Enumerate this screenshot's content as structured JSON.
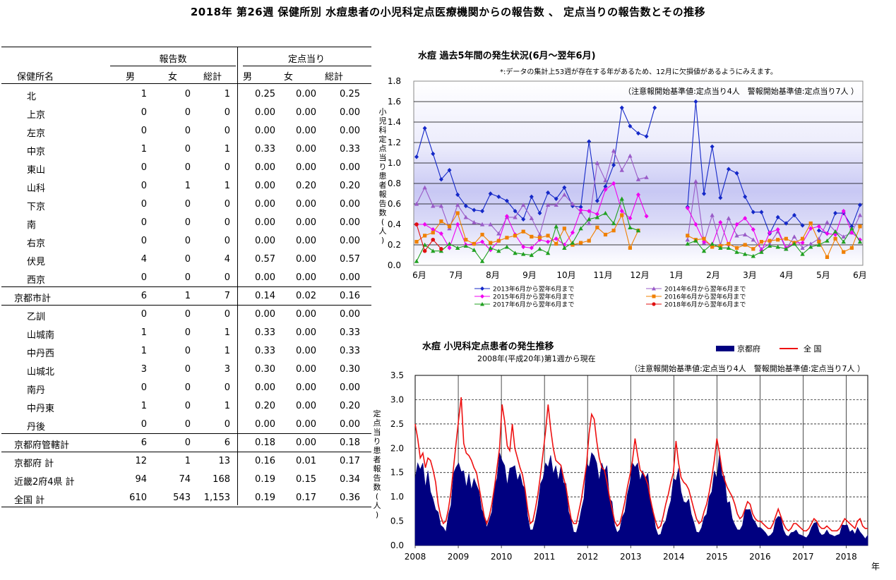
{
  "page_title": "2018年 第26週 保健所別 水痘患者の小児科定点医療機関からの報告数 、 定点当りの報告数とその推移",
  "table": {
    "group_reports": "報告数",
    "group_per_site": "定点当り",
    "col_name": "保健所名",
    "col_male": "男",
    "col_female": "女",
    "col_total": "総計",
    "col_male2": "男",
    "col_female2": "女",
    "col_total2": "総計",
    "rows": [
      {
        "name": "北",
        "m": "1",
        "f": "0",
        "t": "1",
        "pm": "0.25",
        "pf": "0.00",
        "pt": "0.25",
        "sub": true
      },
      {
        "name": "上京",
        "m": "0",
        "f": "0",
        "t": "0",
        "pm": "0.00",
        "pf": "0.00",
        "pt": "0.00",
        "sub": true
      },
      {
        "name": "左京",
        "m": "0",
        "f": "0",
        "t": "0",
        "pm": "0.00",
        "pf": "0.00",
        "pt": "0.00",
        "sub": true
      },
      {
        "name": "中京",
        "m": "1",
        "f": "0",
        "t": "1",
        "pm": "0.33",
        "pf": "0.00",
        "pt": "0.33",
        "sub": true
      },
      {
        "name": "東山",
        "m": "0",
        "f": "0",
        "t": "0",
        "pm": "0.00",
        "pf": "0.00",
        "pt": "0.00",
        "sub": true
      },
      {
        "name": "山科",
        "m": "0",
        "f": "1",
        "t": "1",
        "pm": "0.00",
        "pf": "0.20",
        "pt": "0.20",
        "sub": true
      },
      {
        "name": "下京",
        "m": "0",
        "f": "0",
        "t": "0",
        "pm": "0.00",
        "pf": "0.00",
        "pt": "0.00",
        "sub": true
      },
      {
        "name": "南",
        "m": "0",
        "f": "0",
        "t": "0",
        "pm": "0.00",
        "pf": "0.00",
        "pt": "0.00",
        "sub": true
      },
      {
        "name": "右京",
        "m": "0",
        "f": "0",
        "t": "0",
        "pm": "0.00",
        "pf": "0.00",
        "pt": "0.00",
        "sub": true
      },
      {
        "name": "伏見",
        "m": "4",
        "f": "0",
        "t": "4",
        "pm": "0.57",
        "pf": "0.00",
        "pt": "0.57",
        "sub": true
      },
      {
        "name": "西京",
        "m": "0",
        "f": "0",
        "t": "0",
        "pm": "0.00",
        "pf": "0.00",
        "pt": "0.00",
        "sub": true
      },
      {
        "name": "京都市計",
        "m": "6",
        "f": "1",
        "t": "7",
        "pm": "0.14",
        "pf": "0.02",
        "pt": "0.16",
        "sub": false
      },
      {
        "name": "乙訓",
        "m": "0",
        "f": "0",
        "t": "0",
        "pm": "0.00",
        "pf": "0.00",
        "pt": "0.00",
        "sub": true
      },
      {
        "name": "山城南",
        "m": "1",
        "f": "0",
        "t": "1",
        "pm": "0.33",
        "pf": "0.00",
        "pt": "0.33",
        "sub": true
      },
      {
        "name": "中丹西",
        "m": "1",
        "f": "0",
        "t": "1",
        "pm": "0.33",
        "pf": "0.00",
        "pt": "0.33",
        "sub": true
      },
      {
        "name": "山城北",
        "m": "3",
        "f": "0",
        "t": "3",
        "pm": "0.30",
        "pf": "0.00",
        "pt": "0.30",
        "sub": true
      },
      {
        "name": "南丹",
        "m": "0",
        "f": "0",
        "t": "0",
        "pm": "0.00",
        "pf": "0.00",
        "pt": "0.00",
        "sub": true
      },
      {
        "name": "中丹東",
        "m": "1",
        "f": "0",
        "t": "1",
        "pm": "0.20",
        "pf": "0.00",
        "pt": "0.20",
        "sub": true
      },
      {
        "name": "丹後",
        "m": "0",
        "f": "0",
        "t": "0",
        "pm": "0.00",
        "pf": "0.00",
        "pt": "0.00",
        "sub": true
      },
      {
        "name": "京都府管轄計",
        "m": "6",
        "f": "0",
        "t": "6",
        "pm": "0.18",
        "pf": "0.00",
        "pt": "0.18",
        "sub": false
      },
      {
        "name": "京都府 計",
        "m": "12",
        "f": "1",
        "t": "13",
        "pm": "0.16",
        "pf": "0.01",
        "pt": "0.17",
        "sub": false
      },
      {
        "name": "近畿2府4県 計",
        "m": "94",
        "f": "74",
        "t": "168",
        "pm": "0.19",
        "pf": "0.15",
        "pt": "0.34",
        "sub": false
      },
      {
        "name": "全国 計",
        "m": "610",
        "f": "543",
        "t": "1,153",
        "pm": "0.19",
        "pf": "0.17",
        "pt": "0.36",
        "sub": false
      }
    ]
  },
  "chart_data": [
    {
      "type": "line",
      "title": "水痘 過去5年間の発生状況(6月～翌年6月)",
      "note": "*:データの集計上53週が存在する年があるため、12月に欠損値があるようにみえます。",
      "threshold_note": "（注意報開始基準値:定点当り4人　警報開始基準値:定点当り7人 ）",
      "ylabel": "小児科定点当り患者報告数(人)",
      "ylim": [
        0,
        1.8
      ],
      "yticks": [
        "0.0",
        "0.2",
        "0.4",
        "0.6",
        "0.8",
        "1.0",
        "1.2",
        "1.4",
        "1.6",
        "1.8"
      ],
      "xticks": [
        "6月",
        "7月",
        "8月",
        "9月",
        "10月",
        "11月",
        "12月",
        "1月",
        "2月",
        "3月",
        "4月",
        "5月",
        "6月"
      ],
      "series": [
        {
          "name": "2013年6月から翌年6月まで",
          "color": "#1428c8",
          "marker": "diamond",
          "values": [
            1.06,
            1.34,
            1.09,
            0.84,
            0.93,
            0.69,
            0.58,
            0.54,
            0.53,
            0.7,
            0.67,
            0.63,
            0.53,
            0.45,
            0.67,
            0.51,
            0.71,
            0.65,
            0.76,
            0.58,
            0.57,
            1.21,
            0.63,
            0.77,
            0.98,
            1.54,
            1.36,
            1.29,
            1.26,
            1.54,
            null,
            null,
            null,
            0.57,
            1.6,
            0.7,
            1.16,
            0.66,
            0.94,
            0.9,
            0.67,
            0.52,
            0.52,
            0.31,
            0.47,
            0.41,
            0.49,
            0.39,
            null,
            0.34,
            0.31,
            0.51,
            0.51,
            0.38,
            0.59
          ]
        },
        {
          "name": "2014年6月から翌年6月まで",
          "color": "#9a5cc8",
          "marker": "triangle",
          "values": [
            0.6,
            0.76,
            0.58,
            0.58,
            0.36,
            0.59,
            0.47,
            0.42,
            0.4,
            0.4,
            0.31,
            0.47,
            0.47,
            0.59,
            0.46,
            0.3,
            0.59,
            0.59,
            0.69,
            0.6,
            0.52,
            0.41,
            1.0,
            0.83,
            1.12,
            0.93,
            1.07,
            0.84,
            0.86,
            null,
            null,
            null,
            null,
            0.25,
            0.82,
            0.22,
            0.49,
            0.2,
            0.46,
            0.29,
            0.3,
            0.25,
            0.16,
            0.21,
            0.33,
            0.16,
            0.28,
            0.17,
            0.21,
            0.26,
            0.42,
            0.33,
            0.28,
            0.32,
            0.49
          ]
        },
        {
          "name": "2015年6月から翌年6月まで",
          "color": "#f000f0",
          "marker": "diamond",
          "values": [
            0.4,
            0.4,
            0.35,
            0.31,
            0.17,
            0.4,
            0.2,
            0.21,
            0.23,
            0.15,
            0.24,
            0.48,
            0.3,
            0.18,
            0.17,
            0.25,
            0.23,
            0.26,
            0.2,
            0.32,
            0.54,
            0.53,
            0.5,
            0.74,
            0.8,
            0.53,
            0.46,
            0.69,
            0.48,
            null,
            null,
            null,
            null,
            0.56,
            0.4,
            0.23,
            0.2,
            0.42,
            0.2,
            0.4,
            0.46,
            0.35,
            0.14,
            0.32,
            0.35,
            0.17,
            0.22,
            0.22,
            0.36,
            0.38,
            0.31,
            0.3,
            0.53,
            0.32,
            0.25
          ]
        },
        {
          "name": "2016年6月から翌年6月まで",
          "color": "#f08000",
          "marker": "square",
          "values": [
            0.23,
            0.29,
            0.32,
            0.43,
            0.38,
            0.51,
            0.25,
            0.21,
            0.3,
            0.22,
            0.24,
            0.27,
            0.29,
            0.33,
            0.28,
            0.27,
            0.29,
            0.21,
            0.36,
            0.2,
            0.22,
            0.24,
            0.37,
            0.3,
            0.34,
            0.49,
            0.17,
            0.34,
            null,
            null,
            null,
            null,
            null,
            0.29,
            0.25,
            0.26,
            0.18,
            0.19,
            0.21,
            0.17,
            0.2,
            0.16,
            0.23,
            0.24,
            0.25,
            0.26,
            0.22,
            0.26,
            0.41,
            0.23,
            0.08,
            0.26,
            0.13,
            0.17,
            0.38
          ]
        },
        {
          "name": "2017年6月から翌年6月まで",
          "color": "#20a020",
          "marker": "triangle",
          "values": [
            0.04,
            0.2,
            0.14,
            0.14,
            0.21,
            0.17,
            0.19,
            0.15,
            0.04,
            0.17,
            0.14,
            0.18,
            0.12,
            0.11,
            0.1,
            0.16,
            0.12,
            0.38,
            0.17,
            0.22,
            0.36,
            0.45,
            0.47,
            0.51,
            0.41,
            0.65,
            0.37,
            0.34,
            null,
            null,
            null,
            null,
            null,
            0.21,
            0.24,
            0.14,
            0.21,
            0.17,
            0.17,
            0.13,
            0.11,
            0.09,
            0.13,
            0.19,
            0.18,
            0.16,
            0.21,
            0.11,
            0.18,
            0.2,
            0.24,
            0.33,
            0.23,
            0.36,
            0.23
          ]
        },
        {
          "name": "2018年6月から翌年6月まで",
          "color": "#e01010",
          "marker": "circle",
          "values": [
            0.4,
            0.14,
            0.25,
            0.16,
            null,
            null,
            null,
            null,
            null,
            null,
            null,
            null,
            null,
            null,
            null,
            null,
            null,
            null,
            null,
            null,
            null,
            null,
            null,
            null,
            null,
            null,
            null,
            null,
            null,
            null,
            null,
            null,
            null,
            null,
            null,
            null,
            null,
            null,
            null,
            null,
            null,
            null,
            null,
            null,
            null,
            null,
            null,
            null,
            null,
            null,
            null,
            null,
            null,
            null,
            null
          ]
        }
      ]
    },
    {
      "type": "area",
      "title": "水痘 小児科定点患者の発生推移",
      "subtitle": "2008年(平成20年)第1週から現在",
      "threshold_note": "（注意報開始基準値:定点当り4人　警報開始基準値:定点当り7人 ）",
      "ylabel": "定点当り患者報告数(人)",
      "xlabel": "年",
      "ylim": [
        0,
        3.5
      ],
      "yticks": [
        "0.0",
        "0.5",
        "1.0",
        "1.5",
        "2.0",
        "2.5",
        "3.0",
        "3.5"
      ],
      "xticks": [
        "2008",
        "2009",
        "2010",
        "2011",
        "2012",
        "2013",
        "2014",
        "2015",
        "2016",
        "2017",
        "2018"
      ],
      "x_start": "2008年第1週",
      "x_end": "2018年第26週",
      "series": [
        {
          "name": "京都府",
          "color": "#000080",
          "values": [
            1.5,
            1.6,
            1.7,
            1.6,
            1.3,
            1.45,
            1.2,
            0.9,
            0.8,
            0.65,
            0.45,
            0.35,
            0.3,
            0.6,
            0.9,
            1.4,
            1.75,
            1.6,
            1.65,
            1.45,
            1.3,
            1.4,
            1.25,
            1.3,
            1.35,
            1.05,
            0.8,
            0.6,
            0.4,
            0.5,
            0.75,
            1.15,
            1.5,
            1.8,
            1.9,
            1.55,
            1.35,
            1.5,
            1.75,
            1.55,
            1.45,
            1.4,
            1.35,
            1.1,
            0.65,
            0.3,
            0.35,
            0.5,
            0.9,
            1.2,
            1.5,
            1.6,
            1.75,
            1.75,
            1.6,
            1.55,
            1.45,
            1.55,
            1.4,
            1.2,
            0.75,
            0.5,
            0.3,
            0.25,
            0.5,
            0.7,
            1.05,
            1.6,
            1.75,
            1.8,
            2.0,
            1.6,
            1.45,
            1.6,
            1.65,
            1.55,
            1.05,
            0.85,
            0.45,
            0.25,
            0.35,
            0.55,
            0.75,
            1.0,
            1.4,
            1.6,
            1.75,
            1.6,
            1.45,
            1.45,
            1.5,
            1.4,
            1.0,
            0.7,
            0.4,
            0.2,
            0.25,
            0.4,
            0.55,
            0.7,
            1.0,
            1.3,
            1.45,
            1.5,
            1.2,
            0.85,
            0.95,
            0.9,
            0.7,
            0.45,
            0.3,
            0.25,
            0.4,
            0.55,
            0.7,
            0.95,
            1.2,
            1.45,
            1.5,
            1.8,
            1.55,
            1.35,
            0.95,
            0.85,
            0.6,
            0.4,
            0.35,
            0.3,
            0.45,
            0.7,
            0.8,
            0.7,
            0.6,
            0.45,
            0.4,
            0.35,
            0.35,
            0.25,
            0.2,
            0.2,
            0.3,
            0.5,
            0.65,
            0.55,
            0.35,
            0.2,
            0.2,
            0.25,
            0.3,
            0.3,
            0.25,
            0.2,
            0.2,
            0.15,
            0.25,
            0.35,
            0.5,
            0.45,
            0.3,
            0.2,
            0.25,
            0.3,
            0.25,
            0.2,
            0.2,
            0.2,
            0.25,
            0.4,
            0.45,
            0.4,
            0.3,
            0.3,
            0.25,
            0.35,
            0.3,
            0.2,
            0.15,
            0.2
          ]
        },
        {
          "name": "全 国",
          "color": "#ee1111",
          "values": [
            2.5,
            2.2,
            1.8,
            1.9,
            1.6,
            1.8,
            1.75,
            1.55,
            1.3,
            0.85,
            0.6,
            0.45,
            0.5,
            0.75,
            1.1,
            1.6,
            2.1,
            2.6,
            3.05,
            2.1,
            1.9,
            1.85,
            1.75,
            1.6,
            1.5,
            1.2,
            0.9,
            0.6,
            0.45,
            0.6,
            0.85,
            1.2,
            1.6,
            2.0,
            2.9,
            2.55,
            2.05,
            1.95,
            2.5,
            2.0,
            1.8,
            1.6,
            1.45,
            1.15,
            0.75,
            0.45,
            0.5,
            0.75,
            1.05,
            1.45,
            1.9,
            2.35,
            2.9,
            2.4,
            2.0,
            1.75,
            1.7,
            1.65,
            1.4,
            1.2,
            0.85,
            0.55,
            0.45,
            0.45,
            0.7,
            0.95,
            1.3,
            1.65,
            2.3,
            2.7,
            2.6,
            2.15,
            1.8,
            1.6,
            1.55,
            1.3,
            1.0,
            0.75,
            0.5,
            0.4,
            0.45,
            0.65,
            0.9,
            1.2,
            1.45,
            1.75,
            2.2,
            1.85,
            1.55,
            1.5,
            1.4,
            1.25,
            0.95,
            0.7,
            0.5,
            0.35,
            0.4,
            0.6,
            0.85,
            1.05,
            1.3,
            1.5,
            2.15,
            1.7,
            1.4,
            1.3,
            1.25,
            1.15,
            0.95,
            0.75,
            0.55,
            0.45,
            0.5,
            0.7,
            0.85,
            1.1,
            1.4,
            1.75,
            2.2,
            1.9,
            1.55,
            1.35,
            1.2,
            1.1,
            1.0,
            0.85,
            0.65,
            0.55,
            0.6,
            0.75,
            0.9,
            0.85,
            0.65,
            0.55,
            0.5,
            0.5,
            0.45,
            0.4,
            0.35,
            0.35,
            0.45,
            0.6,
            0.75,
            0.6,
            0.45,
            0.35,
            0.3,
            0.35,
            0.45,
            0.45,
            0.4,
            0.35,
            0.3,
            0.3,
            0.35,
            0.45,
            0.55,
            0.5,
            0.4,
            0.35,
            0.35,
            0.4,
            0.35,
            0.3,
            0.3,
            0.3,
            0.35,
            0.45,
            0.55,
            0.5,
            0.45,
            0.4,
            0.35,
            0.5,
            0.55,
            0.4,
            0.35,
            0.35
          ]
        }
      ]
    }
  ]
}
